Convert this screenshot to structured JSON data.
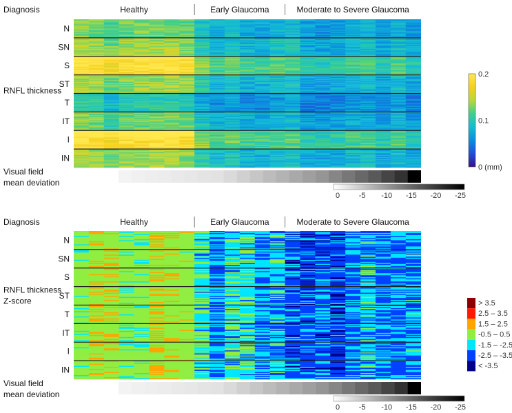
{
  "chart_data": [
    {
      "type": "heatmap",
      "title": "",
      "row_header": "Diagnosis",
      "y_axis_label": "RNFL thickness",
      "groups": [
        "Healthy",
        "Early Glaucoma",
        "Moderate to Severe Glaucoma"
      ],
      "group_column_counts": [
        8,
        6,
        9
      ],
      "sectors": [
        "N",
        "SN",
        "S",
        "ST",
        "T",
        "IT",
        "I",
        "IN"
      ],
      "sector_mean_values": [
        0.1,
        0.11,
        0.15,
        0.11,
        0.08,
        0.1,
        0.15,
        0.11
      ],
      "group_scale": [
        1.25,
        0.8,
        0.7
      ],
      "colorbar": {
        "type": "continuous",
        "ticks": [
          "0.2",
          "0.1",
          "0 (mm)"
        ],
        "tick_values": [
          0.2,
          0.1,
          0.0
        ],
        "range": [
          0,
          0.2
        ],
        "colormap": [
          "#3a0f8f",
          "#1f4fd8",
          "#0a8de0",
          "#13bdd4",
          "#3fcf8e",
          "#b7d83a",
          "#f5d01e",
          "#ffe84d"
        ]
      },
      "vf_label_lines": [
        "Visual field",
        "mean deviation"
      ],
      "vf_colorbar": {
        "ticks": [
          "0",
          "-5",
          "-10",
          "-15",
          "-20",
          "-25"
        ],
        "tick_values": [
          0,
          -5,
          -10,
          -15,
          -20,
          -25
        ],
        "range": [
          0,
          -25
        ]
      },
      "vf_mean_deviation": [
        -0.5,
        -0.8,
        -1.0,
        -1.2,
        -1.5,
        -1.7,
        -2.0,
        -2.2,
        -3.0,
        -4.0,
        -5.0,
        -6.0,
        -7.0,
        -8.0,
        -9.0,
        -10.0,
        -11.5,
        -13.0,
        -14.5,
        -16.0,
        -18.0,
        -20.0,
        -25.0
      ]
    },
    {
      "type": "heatmap",
      "title": "",
      "row_header": "Diagnosis",
      "y_axis_label": "RNFL thickness",
      "y_axis_label_2": "Z-score",
      "groups": [
        "Healthy",
        "Early Glaucoma",
        "Moderate to Severe Glaucoma"
      ],
      "group_column_counts": [
        8,
        6,
        9
      ],
      "sectors": [
        "N",
        "SN",
        "S",
        "ST",
        "T",
        "IT",
        "I",
        "IN"
      ],
      "group_mean_zscore": [
        0.6,
        -1.6,
        -2.4
      ],
      "legend": {
        "type": "categorical",
        "entries": [
          {
            "label": "> 3.5",
            "color": "#8b0000"
          },
          {
            "label": "2.5 – 3.5",
            "color": "#ff1a00"
          },
          {
            "label": "1.5 – 2.5",
            "color": "#ffa500"
          },
          {
            "label": "-0.5 – 0.5",
            "color": "#90ee40"
          },
          {
            "label": "-1.5 – -2.5",
            "color": "#00e5ff"
          },
          {
            "label": "-2.5 – -3.5",
            "color": "#0040ff"
          },
          {
            "label": "< -3.5",
            "color": "#00008b"
          }
        ]
      },
      "vf_label_lines": [
        "Visual field",
        "mean deviation"
      ],
      "vf_colorbar": {
        "ticks": [
          "0",
          "-5",
          "-10",
          "-15",
          "-20",
          "-25"
        ],
        "tick_values": [
          0,
          -5,
          -10,
          -15,
          -20,
          -25
        ],
        "range": [
          0,
          -25
        ]
      },
      "vf_mean_deviation": [
        -0.5,
        -0.8,
        -1.0,
        -1.2,
        -1.5,
        -1.7,
        -2.0,
        -2.2,
        -3.0,
        -4.0,
        -5.0,
        -6.0,
        -7.0,
        -8.0,
        -9.0,
        -10.0,
        -11.5,
        -13.0,
        -14.5,
        -16.0,
        -18.0,
        -20.0,
        -25.0
      ]
    }
  ]
}
